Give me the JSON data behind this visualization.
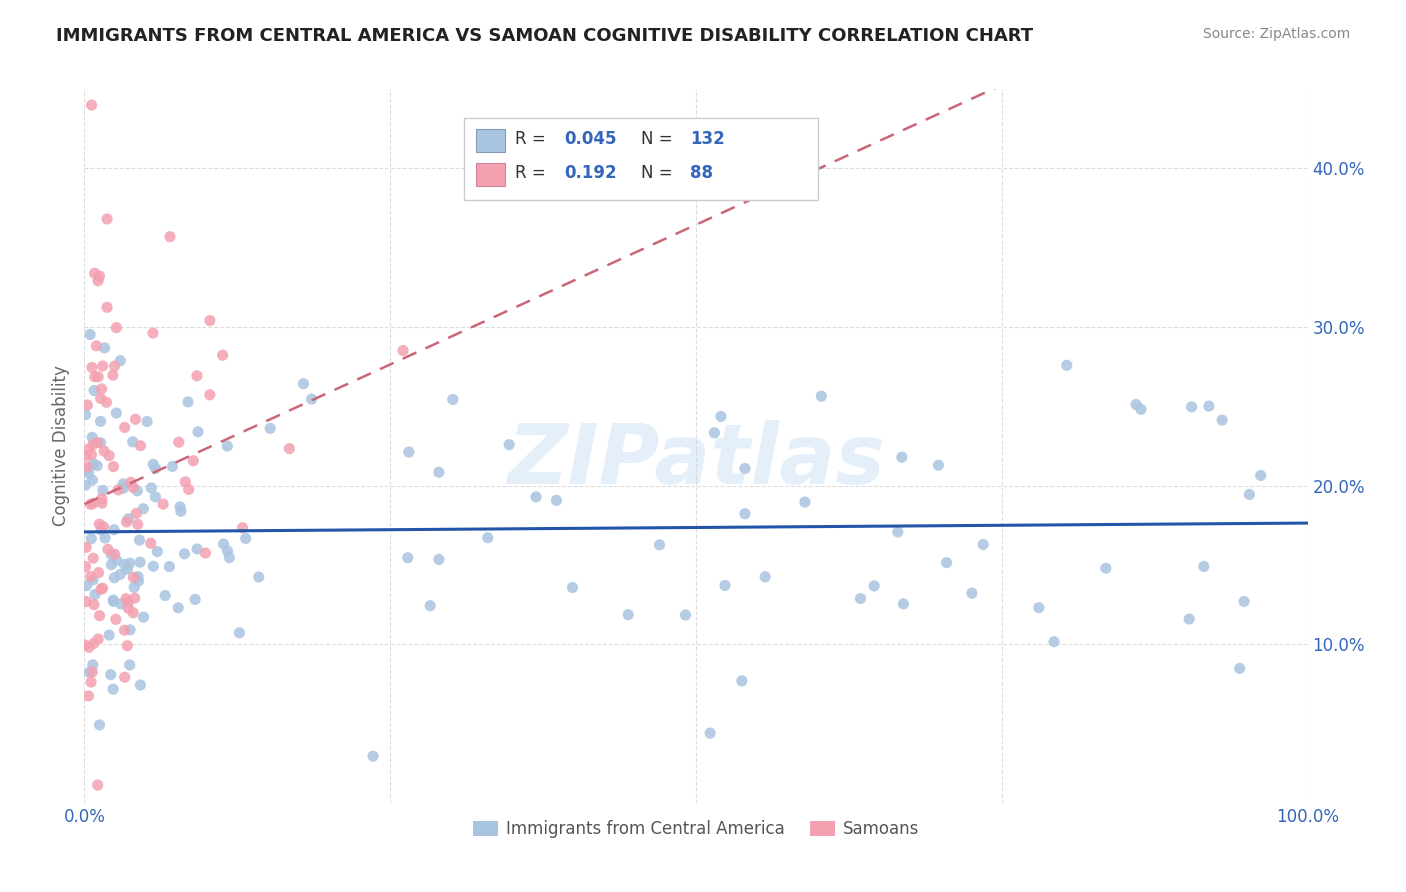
{
  "title": "IMMIGRANTS FROM CENTRAL AMERICA VS SAMOAN COGNITIVE DISABILITY CORRELATION CHART",
  "source": "Source: ZipAtlas.com",
  "ylabel": "Cognitive Disability",
  "xlim": [
    0.0,
    1.0
  ],
  "ylim": [
    0.0,
    0.45
  ],
  "yticks": [
    0.1,
    0.2,
    0.3,
    0.4
  ],
  "xticks": [
    0.0,
    0.25,
    0.5,
    0.75,
    1.0
  ],
  "xtick_labels": [
    "0.0%",
    "",
    "",
    "",
    "100.0%"
  ],
  "ytick_labels": [
    "10.0%",
    "20.0%",
    "30.0%",
    "40.0%"
  ],
  "legend_r1": "0.045",
  "legend_n1": "132",
  "legend_r2": "0.192",
  "legend_n2": "88",
  "watermark": "ZIPatlas",
  "series1_color": "#a8c4e0",
  "series2_color": "#f4a0b0",
  "line1_color": "#2255aa",
  "line2_color": "#cc6677",
  "background_color": "#ffffff",
  "grid_color": "#dddddd",
  "series1_N": 132,
  "series2_N": 88
}
